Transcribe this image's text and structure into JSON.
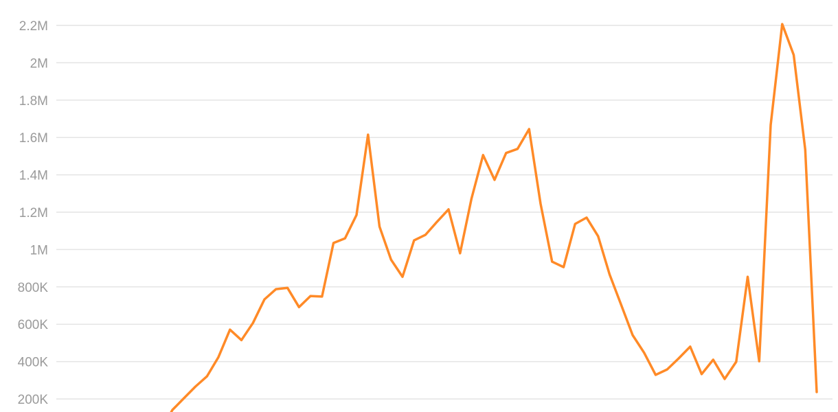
{
  "chart_data": {
    "type": "line",
    "title": "",
    "xlabel": "",
    "ylabel": "",
    "ylim": [
      130000,
      2250000
    ],
    "grid": true,
    "y_ticks": [
      {
        "value": 200000,
        "label": "200K"
      },
      {
        "value": 400000,
        "label": "400K"
      },
      {
        "value": 600000,
        "label": "600K"
      },
      {
        "value": 800000,
        "label": "800K"
      },
      {
        "value": 1000000,
        "label": "1M"
      },
      {
        "value": 1200000,
        "label": "1.2M"
      },
      {
        "value": 1400000,
        "label": "1.4M"
      },
      {
        "value": 1600000,
        "label": "1.6M"
      },
      {
        "value": 1800000,
        "label": "1.8M"
      },
      {
        "value": 2000000,
        "label": "2M"
      },
      {
        "value": 2200000,
        "label": "2.2M"
      }
    ],
    "line_color": "#FF8A27",
    "series": [
      {
        "values": [
          141000,
          204000,
          266000,
          321000,
          424000,
          571000,
          515000,
          607000,
          733000,
          788000,
          795000,
          692000,
          751000,
          748000,
          1035000,
          1060000,
          1185000,
          1615000,
          1123000,
          946000,
          854000,
          1049000,
          1079000,
          1149000,
          1215000,
          980000,
          1274000,
          1506000,
          1373000,
          1517000,
          1539000,
          1645000,
          1245000,
          935000,
          906000,
          1137000,
          1171000,
          1071000,
          866000,
          704000,
          542000,
          447000,
          329000,
          358000,
          417000,
          480000,
          333000,
          410000,
          307000,
          399000,
          854000,
          402000,
          1667000,
          2207000,
          2042000,
          1535000,
          237000
        ]
      }
    ]
  }
}
